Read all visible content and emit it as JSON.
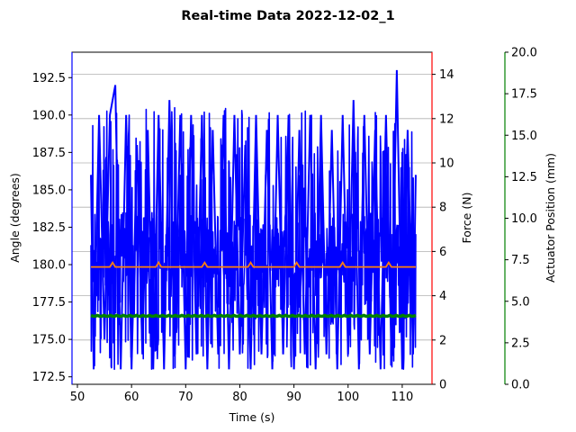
{
  "chart_data": {
    "type": "line",
    "title": "Real-time Data 2022-12-02_1",
    "xlabel": "Time (s)",
    "xlim": [
      49,
      115.5
    ],
    "xticks": [
      "50",
      "60",
      "70",
      "80",
      "90",
      "100",
      "110"
    ],
    "axes": {
      "angle": {
        "label": "Angle (degrees)",
        "color": "#0000ff",
        "ylim": [
          172,
          194.2
        ],
        "ticks": [
          "172.5",
          "175.0",
          "177.5",
          "180.0",
          "182.5",
          "185.0",
          "187.5",
          "190.0",
          "192.5"
        ]
      },
      "force": {
        "label": "Force (N)",
        "color": "#ff0000",
        "ylim": [
          0,
          15
        ],
        "ticks": [
          "0",
          "2",
          "4",
          "6",
          "8",
          "10",
          "12",
          "14"
        ]
      },
      "actuator": {
        "label": "Actuator Position (mm)",
        "color": "#008000",
        "ylim": [
          0,
          20
        ],
        "ticks": [
          "0.0",
          "2.5",
          "5.0",
          "7.5",
          "10.0",
          "12.5",
          "15.0",
          "17.5",
          "20.0"
        ]
      }
    },
    "grid": true,
    "series": [
      {
        "axis": "angle",
        "color": "#0000ff",
        "x_range": [
          52.5,
          112.5
        ],
        "baseline": 180.5,
        "min": 173,
        "max": 193,
        "x": [
          52.5,
          53,
          54,
          55,
          56,
          57,
          58,
          59,
          60,
          61,
          62,
          63,
          64,
          65,
          66,
          67,
          68,
          69,
          70,
          71,
          72,
          73,
          74,
          75,
          76,
          77,
          78,
          79,
          80,
          81,
          82,
          83,
          84,
          85,
          86,
          87,
          88,
          89,
          90,
          91,
          92,
          93,
          94,
          95,
          96,
          97,
          98,
          99,
          100,
          101,
          102,
          103,
          104,
          105,
          106,
          107,
          108,
          109,
          110,
          111,
          112,
          112.5
        ],
        "y": [
          186,
          173,
          190,
          175,
          190,
          192,
          173,
          190,
          173,
          188,
          174,
          189,
          173,
          190,
          173,
          191,
          174,
          190,
          173,
          190,
          174,
          190,
          173,
          189,
          174,
          190,
          173,
          190,
          174,
          188,
          173,
          190,
          174,
          189,
          173,
          190,
          174,
          190,
          173,
          189,
          174,
          190,
          173,
          190,
          174,
          189,
          173,
          190,
          174,
          191,
          173,
          190,
          174,
          189,
          173,
          190,
          174,
          193,
          173,
          189,
          174,
          186
        ]
      },
      {
        "axis": "force",
        "color": "#ff7f0e",
        "x": [
          52.5,
          112.5
        ],
        "y": [
          5.3,
          5.3
        ]
      },
      {
        "axis": "actuator",
        "color": "#008000",
        "x": [
          52.5,
          112.5
        ],
        "y": [
          4.1,
          4.1
        ]
      }
    ]
  }
}
